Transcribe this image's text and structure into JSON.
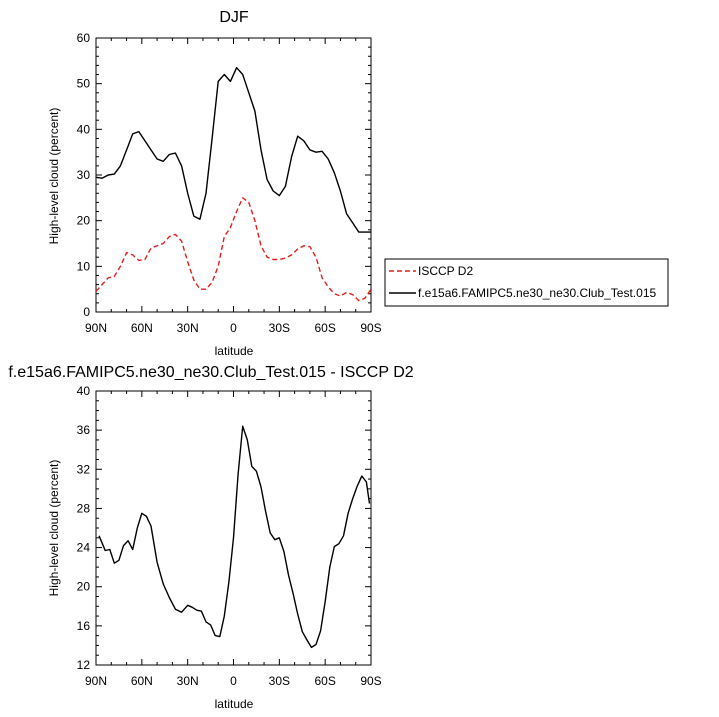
{
  "chart_data": [
    {
      "type": "line",
      "title": "DJF",
      "xlabel": "latitude",
      "ylabel": "High-level cloud (percent)",
      "xlim": [
        -90,
        90
      ],
      "ylim": [
        0,
        60
      ],
      "xticks": [
        -90,
        -60,
        -30,
        0,
        30,
        60,
        90
      ],
      "xtick_labels": [
        "90N",
        "60N",
        "30N",
        "0",
        "30S",
        "60S",
        "90S"
      ],
      "yticks": [
        0,
        10,
        20,
        30,
        40,
        50,
        60
      ],
      "ytick_labels": [
        "0",
        "10",
        "20",
        "30",
        "40",
        "50",
        "60"
      ],
      "grid": false,
      "legend_position": "right",
      "series": [
        {
          "name": "ISCCP D2",
          "color": "#e0201b",
          "dash": "dashed",
          "x": [
            -90,
            -86,
            -82,
            -78,
            -74,
            -70,
            -66,
            -62,
            -58,
            -54,
            -50,
            -46,
            -42,
            -38,
            -34,
            -30,
            -26,
            -22,
            -18,
            -14,
            -10,
            -6,
            -2,
            2,
            6,
            10,
            14,
            18,
            22,
            26,
            30,
            34,
            38,
            42,
            46,
            50,
            54,
            58,
            62,
            66,
            70,
            74,
            78,
            82,
            86,
            90
          ],
          "y": [
            4.5,
            6,
            7.5,
            7.8,
            10,
            13,
            12.5,
            11.3,
            11.5,
            14,
            14.5,
            15,
            16.5,
            17,
            15.5,
            11,
            7,
            5,
            5,
            6.5,
            10,
            16.5,
            18.5,
            22,
            25,
            24,
            20,
            14.5,
            12,
            11.5,
            11.5,
            11.8,
            12.5,
            13.8,
            14.5,
            14.3,
            12,
            7.5,
            5.5,
            4,
            3.5,
            4.3,
            3.8,
            2.5,
            3,
            5
          ]
        },
        {
          "name": "f.e15a6.FAMIPC5.ne30_ne30.Club_Test.015",
          "color": "#000000",
          "dash": "solid",
          "x": [
            -90,
            -86,
            -82,
            -78,
            -74,
            -70,
            -66,
            -62,
            -58,
            -54,
            -50,
            -46,
            -42,
            -38,
            -34,
            -30,
            -26,
            -22,
            -18,
            -14,
            -10,
            -6,
            -2,
            2,
            6,
            10,
            14,
            18,
            22,
            26,
            30,
            34,
            38,
            42,
            46,
            50,
            54,
            58,
            62,
            66,
            70,
            74,
            78,
            82,
            86,
            90
          ],
          "y": [
            29.5,
            29.3,
            30,
            30.2,
            32,
            35.5,
            39,
            39.5,
            37.5,
            35.5,
            33.5,
            33,
            34.5,
            34.8,
            32,
            26,
            21,
            20.3,
            26,
            38,
            50.5,
            52,
            50.5,
            53.5,
            52,
            48,
            44,
            35.5,
            29,
            26.5,
            25.5,
            27.5,
            34,
            38.5,
            37.5,
            35.5,
            35,
            35.2,
            33.5,
            30.5,
            26.5,
            21.5,
            19.5,
            17.5,
            17.5,
            17.5
          ]
        }
      ]
    },
    {
      "type": "line",
      "title": "f.e15a6.FAMIPC5.ne30_ne30.Club_Test.015 - ISCCP D2",
      "xlabel": "latitude",
      "ylabel": "High-level cloud (percent)",
      "xlim": [
        -90,
        90
      ],
      "ylim": [
        12,
        40
      ],
      "xticks": [
        -90,
        -60,
        -30,
        0,
        30,
        60,
        90
      ],
      "xtick_labels": [
        "90N",
        "60N",
        "30N",
        "0",
        "30S",
        "60S",
        "90S"
      ],
      "yticks": [
        12,
        16,
        20,
        24,
        28,
        32,
        36,
        40
      ],
      "ytick_labels": [
        "12",
        "16",
        "20",
        "24",
        "28",
        "32",
        "36",
        "40"
      ],
      "grid": false,
      "series": [
        {
          "color": "#000000",
          "dash": "solid",
          "x": [
            -88,
            -84,
            -81,
            -78,
            -75,
            -72,
            -69,
            -66,
            -63,
            -60,
            -57,
            -54,
            -50,
            -46,
            -42,
            -38,
            -34,
            -30,
            -27,
            -24,
            -21,
            -18,
            -15,
            -12,
            -9,
            -6,
            -3,
            0,
            3,
            6,
            9,
            12,
            15,
            18,
            21,
            24,
            27,
            30,
            33,
            36,
            39,
            42,
            45,
            48,
            51,
            54,
            57,
            60,
            63,
            66,
            69,
            72,
            75,
            78,
            81,
            84,
            87,
            89
          ],
          "y": [
            25.2,
            23.7,
            23.8,
            22.4,
            22.7,
            24.2,
            24.7,
            23.8,
            26,
            27.5,
            27.2,
            26.2,
            22.5,
            20.3,
            18.9,
            17.7,
            17.4,
            18.1,
            17.9,
            17.6,
            17.5,
            16.4,
            16.1,
            15,
            14.9,
            17,
            20.5,
            25,
            31.5,
            36.4,
            35,
            32.3,
            31.8,
            30.2,
            27.7,
            25.5,
            24.8,
            25,
            23.6,
            21.2,
            19.3,
            17.2,
            15.4,
            14.6,
            13.8,
            14.1,
            15.5,
            18.5,
            22,
            24.1,
            24.4,
            25.2,
            27.5,
            29,
            30.3,
            31.3,
            30.7,
            28.5
          ]
        }
      ]
    }
  ]
}
